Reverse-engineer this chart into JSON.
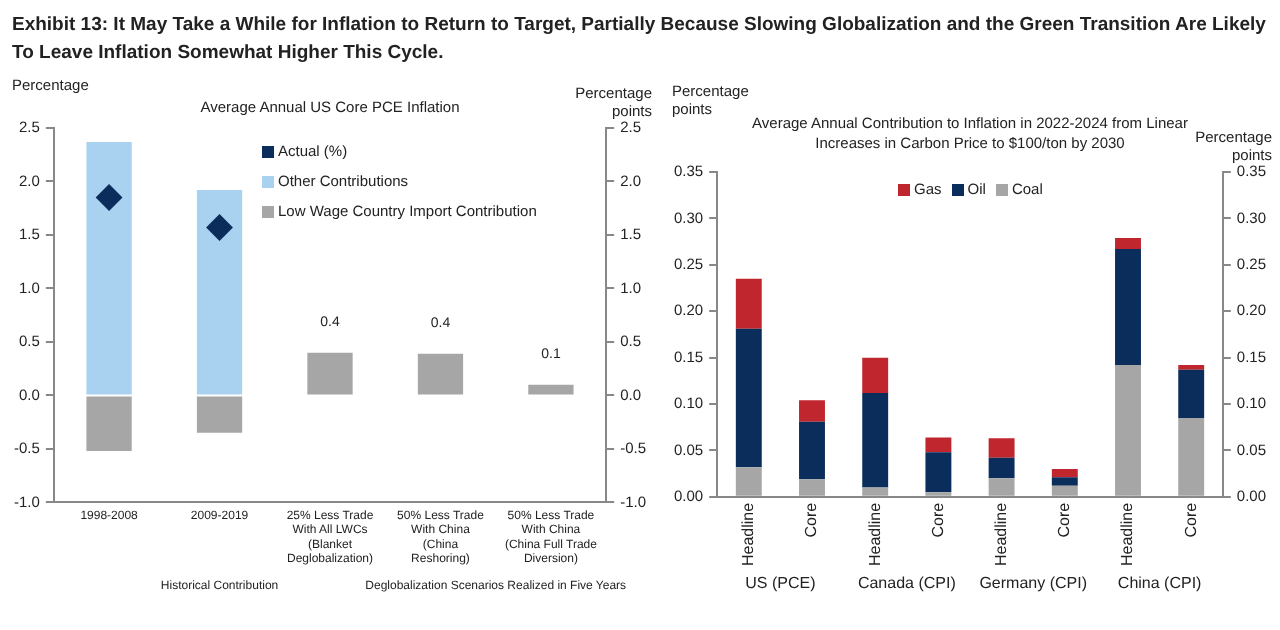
{
  "chart_data": [
    {
      "type": "bar",
      "title": "Exhibit 13: It May Take a While for Inflation to Return to Target, Partially Because Slowing Globalization and the Green Transition Are Likely To Leave Inflation Somewhat Higher This Cycle.",
      "subtitle": "Average Annual US Core PCE Inflation",
      "ylabel": "Percentage",
      "y2label": "Percentage points",
      "categories": [
        "1998-2008",
        "2009-2019",
        "25% Less Trade With All LWCs (Blanket Deglobalization)",
        "50% Less Trade With China (China Reshoring)",
        "50% Less Trade With China (China Full Trade Diversion)"
      ],
      "series": [
        {
          "name": "Low Wage Country Import Contribution",
          "color": "#a6a6a6",
          "values": [
            -0.52,
            -0.35,
            0.4,
            0.39,
            0.1
          ],
          "value_labels": [
            null,
            null,
            "0.4",
            "0.4",
            "0.1"
          ]
        },
        {
          "name": "Other Contributions",
          "color": "#a9d1f0",
          "values": [
            2.37,
            1.92,
            null,
            null,
            null
          ]
        },
        {
          "name": "Actual (%)",
          "type": "scatter",
          "color": "#0b2d5b",
          "x": [
            "1998-2008",
            "2009-2019"
          ],
          "values": [
            1.85,
            1.57
          ]
        }
      ],
      "stacked": true,
      "marker": "diamond",
      "legend": "top right",
      "ylim": [
        -1,
        2.5
      ],
      "yticks": [
        {
          "value": -1,
          "label": "-1.0"
        },
        {
          "value": -0.5,
          "label": "-0.5"
        },
        {
          "value": 0,
          "label": "0.0"
        },
        {
          "value": 0.5,
          "label": "0.5"
        },
        {
          "value": 1,
          "label": "1.0"
        },
        {
          "value": 1.5,
          "label": "1.5"
        },
        {
          "value": 2,
          "label": "2.0"
        },
        {
          "value": 2.5,
          "label": "2.5"
        }
      ],
      "y2lim": [
        -1,
        2.5
      ],
      "y2ticks": [
        {
          "value": -1,
          "label": "-1.0"
        },
        {
          "value": -0.5,
          "label": "-0.5"
        },
        {
          "value": 0,
          "label": "0.0"
        },
        {
          "value": 0.5,
          "label": "0.5"
        },
        {
          "value": 1,
          "label": "1.0"
        },
        {
          "value": 1.5,
          "label": "1.5"
        },
        {
          "value": 2,
          "label": "2.0"
        },
        {
          "value": 2.5,
          "label": "2.5"
        }
      ],
      "annotations": [
        "Historical Contribution",
        "Deglobalization Scenarios Realized in Five Years"
      ]
    },
    {
      "type": "bar",
      "title": "Average Annual Contribution to Inflation in 2022-2024 from Linear Increases in Carbon Price to $100/ton by 2030",
      "ylabel": "Percentage points",
      "y2label": "Percentage points",
      "categories": [
        "Headline",
        "Core",
        "Headline",
        "Core",
        "Headline",
        "Core",
        "Headline",
        "Core"
      ],
      "series": [
        {
          "name": "Coal",
          "color": "#a6a6a6",
          "values": [
            0.032,
            0.019,
            0.01,
            0.005,
            0.02,
            0.012,
            0.142,
            0.085
          ]
        },
        {
          "name": "Oil",
          "color": "#0b2d5b",
          "values": [
            0.149,
            0.062,
            0.102,
            0.043,
            0.022,
            0.009,
            0.125,
            0.052
          ]
        },
        {
          "name": "Gas",
          "color": "#c0262d",
          "values": [
            0.054,
            0.023,
            0.038,
            0.016,
            0.021,
            0.009,
            0.012,
            0.005
          ]
        }
      ],
      "stacked": true,
      "legend": "top",
      "ylim": [
        0,
        0.35
      ],
      "yticks": [
        {
          "value": 0,
          "label": "0.00"
        },
        {
          "value": 0.05,
          "label": "0.05"
        },
        {
          "value": 0.1,
          "label": "0.10"
        },
        {
          "value": 0.15,
          "label": "0.15"
        },
        {
          "value": 0.2,
          "label": "0.20"
        },
        {
          "value": 0.25,
          "label": "0.25"
        },
        {
          "value": 0.3,
          "label": "0.30"
        },
        {
          "value": 0.35,
          "label": "0.35"
        }
      ],
      "y2lim": [
        0,
        0.35
      ],
      "y2ticks": [
        {
          "value": 0,
          "label": "0.00"
        },
        {
          "value": 0.05,
          "label": "0.05"
        },
        {
          "value": 0.1,
          "label": "0.10"
        },
        {
          "value": 0.15,
          "label": "0.15"
        },
        {
          "value": 0.2,
          "label": "0.20"
        },
        {
          "value": 0.25,
          "label": "0.25"
        },
        {
          "value": 0.3,
          "label": "0.30"
        },
        {
          "value": 0.35,
          "label": "0.35"
        }
      ],
      "annotations": [
        "US (PCE)",
        "Canada (CPI)",
        "Germany (CPI)",
        "China (CPI)"
      ]
    }
  ]
}
